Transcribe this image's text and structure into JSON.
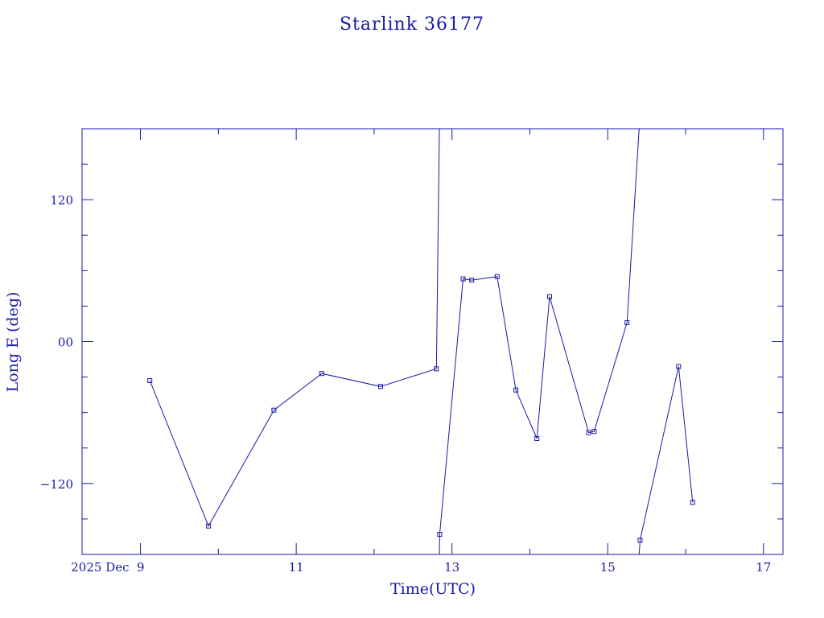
{
  "chart_data": {
    "type": "line",
    "title": "Starlink 36177",
    "xlabel": "Time(UTC)",
    "ylabel": "Long E (deg)",
    "xlim": [
      "2025-12-08T06:00",
      "2025-12-17T06:00"
    ],
    "ylim": [
      -180,
      180
    ],
    "x_ticks": [
      {
        "value": "2025-12-09",
        "label": "2025 Dec  9"
      },
      {
        "value": "2025-12-11",
        "label": "11"
      },
      {
        "value": "2025-12-13",
        "label": "13"
      },
      {
        "value": "2025-12-15",
        "label": "15"
      },
      {
        "value": "2025-12-17",
        "label": "17"
      }
    ],
    "x_minor_ticks": [
      "2025-12-10",
      "2025-12-12",
      "2025-12-14",
      "2025-12-16"
    ],
    "y_ticks": [
      {
        "value": 120,
        "label": "120"
      },
      {
        "value": 0,
        "label": "00"
      },
      {
        "value": -120,
        "label": "−120"
      }
    ],
    "y_minor_step": 30,
    "grid": false,
    "series": [
      {
        "x": [
          "2025-12-09T02:53",
          "2025-12-09T20:58",
          "2025-12-10T17:07",
          "2025-12-11T07:53",
          "2025-12-12T02:01",
          "2025-12-12T19:12",
          "2025-12-12T20:12",
          "2025-12-13T03:26",
          "2025-12-13T06:05",
          "2025-12-13T13:55",
          "2025-12-13T19:41",
          "2025-12-14T02:10",
          "2025-12-14T06:05",
          "2025-12-14T18:07",
          "2025-12-14T19:48",
          "2025-12-15T05:57",
          "2025-12-15T09:58",
          "2025-12-15T21:50",
          "2025-12-16T02:10"
        ],
        "y": [
          -33,
          -156,
          -58,
          -27,
          -38,
          -23,
          -163,
          53,
          52,
          55,
          -41,
          -82,
          38,
          -77,
          -76,
          16,
          -168,
          -21,
          -136
        ],
        "segments": [
          [
            0,
            5
          ],
          [
            6,
            15
          ],
          [
            16,
            18
          ]
        ]
      }
    ]
  }
}
